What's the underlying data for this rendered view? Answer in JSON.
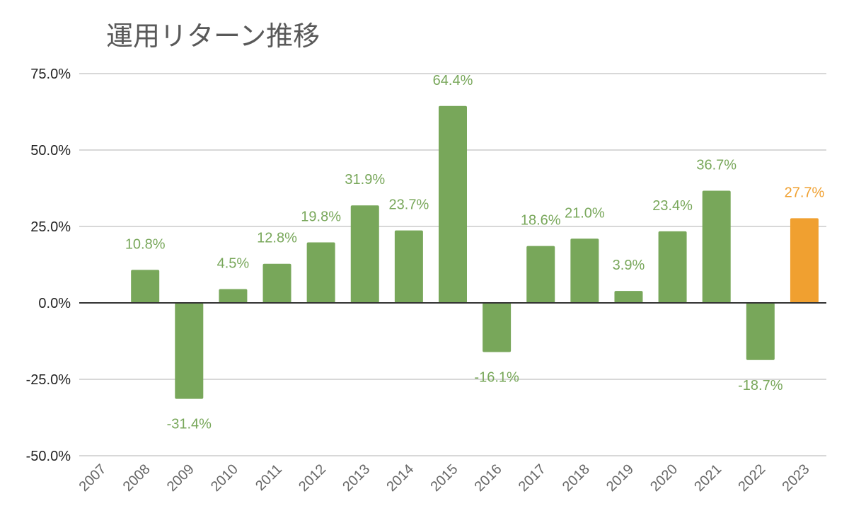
{
  "chart_data": {
    "type": "bar",
    "title": "運用リターン推移",
    "categories": [
      "2007",
      "2008",
      "2009",
      "2010",
      "2011",
      "2012",
      "2013",
      "2014",
      "2015",
      "2016",
      "2017",
      "2018",
      "2019",
      "2020",
      "2021",
      "2022",
      "2023"
    ],
    "values": [
      null,
      10.8,
      -31.4,
      4.5,
      12.8,
      19.8,
      31.9,
      23.7,
      64.4,
      -16.1,
      18.6,
      21.0,
      3.9,
      23.4,
      36.7,
      -18.7,
      27.7
    ],
    "data_labels": [
      "",
      "10.8%",
      "-31.4%",
      "4.5%",
      "12.8%",
      "19.8%",
      "31.9%",
      "23.7%",
      "64.4%",
      "-16.1%",
      "18.6%",
      "21.0%",
      "3.9%",
      "23.4%",
      "36.7%",
      "-18.7%",
      "27.7%"
    ],
    "ylim": [
      -50,
      75
    ],
    "yticks": [
      75,
      50,
      25,
      0,
      -25,
      -50
    ],
    "ytick_labels": [
      "75.0%",
      "50.0%",
      "25.0%",
      "0.0%",
      "-25.0%",
      "-50.0%"
    ],
    "xlabel": "",
    "ylabel": "",
    "grid": true,
    "legend": "none",
    "highlight_category": "2023",
    "colors": {
      "bar": "#78a75a",
      "highlight": "#f0a030",
      "label": "#78a75a",
      "highlight_label": "#f0a030",
      "grid": "#cccccc",
      "zero_line": "#333333"
    }
  }
}
